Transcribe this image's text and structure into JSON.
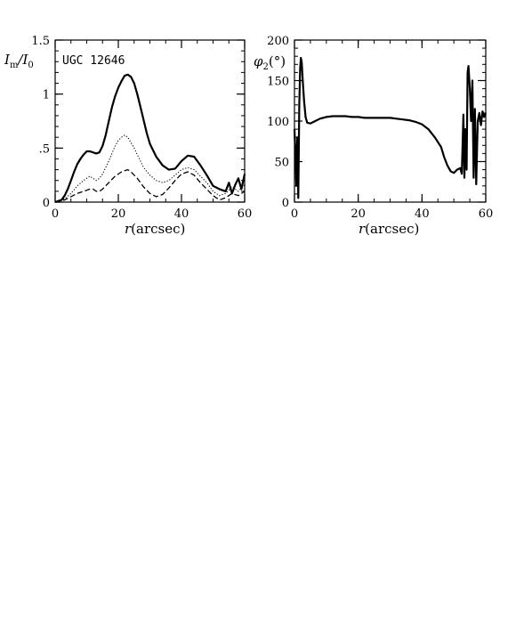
{
  "chart_data": [
    {
      "type": "line",
      "panel_label": "UGC 12646",
      "ylabel_main": "I",
      "ylabel_sub_main": "m",
      "ylabel_slash": "/I",
      "ylabel_sub_div": "0",
      "xlabel_italic": "r",
      "xlabel_rest": "(arcsec)",
      "xlim": [
        0,
        60
      ],
      "ylim": [
        0,
        1.5
      ],
      "x_ticks": [
        0,
        20,
        40,
        60
      ],
      "x_tick_labels": [
        "0",
        "20",
        "40",
        "60"
      ],
      "y_ticks": [
        0,
        0.5,
        1,
        1.5
      ],
      "y_tick_labels": [
        "0",
        ".5",
        "1",
        "1.5"
      ],
      "x_minor_step": 5,
      "y_minor_step": 0.1,
      "grid": false,
      "series": [
        {
          "style": "solid-thick",
          "x": [
            0,
            2,
            3,
            4,
            5,
            6,
            7,
            8,
            9,
            10,
            11,
            12,
            13,
            14,
            15,
            16,
            17,
            18,
            19,
            20,
            21,
            22,
            23,
            24,
            25,
            26,
            27,
            28,
            29,
            30,
            32,
            34,
            36,
            38,
            40,
            42,
            44,
            46,
            48,
            50,
            52,
            54,
            55,
            56,
            57,
            58,
            59,
            60
          ],
          "y": [
            0.0,
            0.02,
            0.06,
            0.12,
            0.2,
            0.28,
            0.35,
            0.4,
            0.44,
            0.47,
            0.47,
            0.46,
            0.45,
            0.46,
            0.52,
            0.62,
            0.75,
            0.88,
            0.98,
            1.06,
            1.12,
            1.17,
            1.18,
            1.16,
            1.1,
            1.0,
            0.88,
            0.76,
            0.64,
            0.54,
            0.42,
            0.34,
            0.3,
            0.31,
            0.38,
            0.43,
            0.42,
            0.34,
            0.25,
            0.15,
            0.12,
            0.1,
            0.18,
            0.08,
            0.16,
            0.22,
            0.12,
            0.26
          ]
        },
        {
          "style": "dotted",
          "x": [
            0,
            3,
            5,
            7,
            9,
            10,
            11,
            12,
            13,
            14,
            15,
            16,
            17,
            18,
            19,
            20,
            21,
            22,
            23,
            24,
            25,
            26,
            27,
            28,
            30,
            32,
            34,
            36,
            38,
            40,
            42,
            44,
            46,
            48,
            50,
            52,
            54,
            56,
            58,
            60
          ],
          "y": [
            0.0,
            0.03,
            0.08,
            0.15,
            0.2,
            0.22,
            0.24,
            0.22,
            0.2,
            0.22,
            0.26,
            0.32,
            0.38,
            0.45,
            0.52,
            0.57,
            0.6,
            0.62,
            0.6,
            0.55,
            0.5,
            0.44,
            0.38,
            0.32,
            0.25,
            0.2,
            0.18,
            0.2,
            0.25,
            0.3,
            0.32,
            0.3,
            0.24,
            0.18,
            0.1,
            0.06,
            0.08,
            0.14,
            0.1,
            0.16
          ]
        },
        {
          "style": "dashed",
          "x": [
            0,
            3,
            5,
            7,
            9,
            10,
            11,
            12,
            13,
            14,
            15,
            16,
            17,
            18,
            19,
            20,
            21,
            22,
            23,
            24,
            25,
            26,
            27,
            28,
            30,
            32,
            34,
            36,
            38,
            40,
            42,
            44,
            46,
            48,
            50,
            52,
            54,
            56,
            58,
            60
          ],
          "y": [
            0.0,
            0.02,
            0.05,
            0.08,
            0.1,
            0.11,
            0.12,
            0.12,
            0.1,
            0.1,
            0.12,
            0.15,
            0.18,
            0.21,
            0.24,
            0.26,
            0.28,
            0.29,
            0.3,
            0.28,
            0.25,
            0.22,
            0.18,
            0.14,
            0.08,
            0.05,
            0.07,
            0.13,
            0.2,
            0.26,
            0.28,
            0.25,
            0.18,
            0.12,
            0.06,
            0.02,
            0.04,
            0.08,
            0.06,
            0.1
          ]
        }
      ]
    },
    {
      "type": "line",
      "ylabel_main": "φ",
      "ylabel_sub": "2",
      "ylabel_rest": "(°)",
      "xlabel_italic": "r",
      "xlabel_rest": "(arcsec)",
      "xlim": [
        0,
        60
      ],
      "ylim": [
        0,
        200
      ],
      "x_ticks": [
        0,
        20,
        40,
        60
      ],
      "x_tick_labels": [
        "0",
        "20",
        "40",
        "60"
      ],
      "y_ticks": [
        0,
        50,
        100,
        150,
        200
      ],
      "y_tick_labels": [
        "0",
        "50",
        "100",
        "150",
        "200"
      ],
      "x_minor_step": 5,
      "y_minor_step": 10,
      "grid": false,
      "series": [
        {
          "style": "solid-thick",
          "x": [
            0,
            0.3,
            0.6,
            0.9,
            1.2,
            1.5,
            1.8,
            2.0,
            2.3,
            2.6,
            3.0,
            3.5,
            4.0,
            5,
            6,
            8,
            10,
            12,
            14,
            16,
            18,
            20,
            22,
            24,
            26,
            28,
            30,
            32,
            34,
            36,
            38,
            40,
            42,
            44,
            46,
            47,
            48,
            49,
            50,
            51,
            52,
            52.5,
            53,
            53.3,
            53.6,
            54,
            54.3,
            54.6,
            55,
            55.4,
            55.8,
            56.2,
            56.6,
            57,
            57.5,
            58,
            58.5,
            59,
            59.5,
            60
          ],
          "y": [
            90,
            60,
            20,
            80,
            5,
            120,
            165,
            178,
            172,
            150,
            125,
            105,
            98,
            97,
            99,
            103,
            105,
            106,
            106,
            106,
            105,
            105,
            104,
            104,
            104,
            104,
            104,
            103,
            102,
            101,
            99,
            96,
            90,
            80,
            68,
            55,
            45,
            38,
            36,
            40,
            42,
            35,
            108,
            30,
            90,
            40,
            160,
            168,
            140,
            100,
            150,
            30,
            115,
            22,
            100,
            110,
            95,
            112,
            105,
            110
          ]
        }
      ]
    }
  ]
}
